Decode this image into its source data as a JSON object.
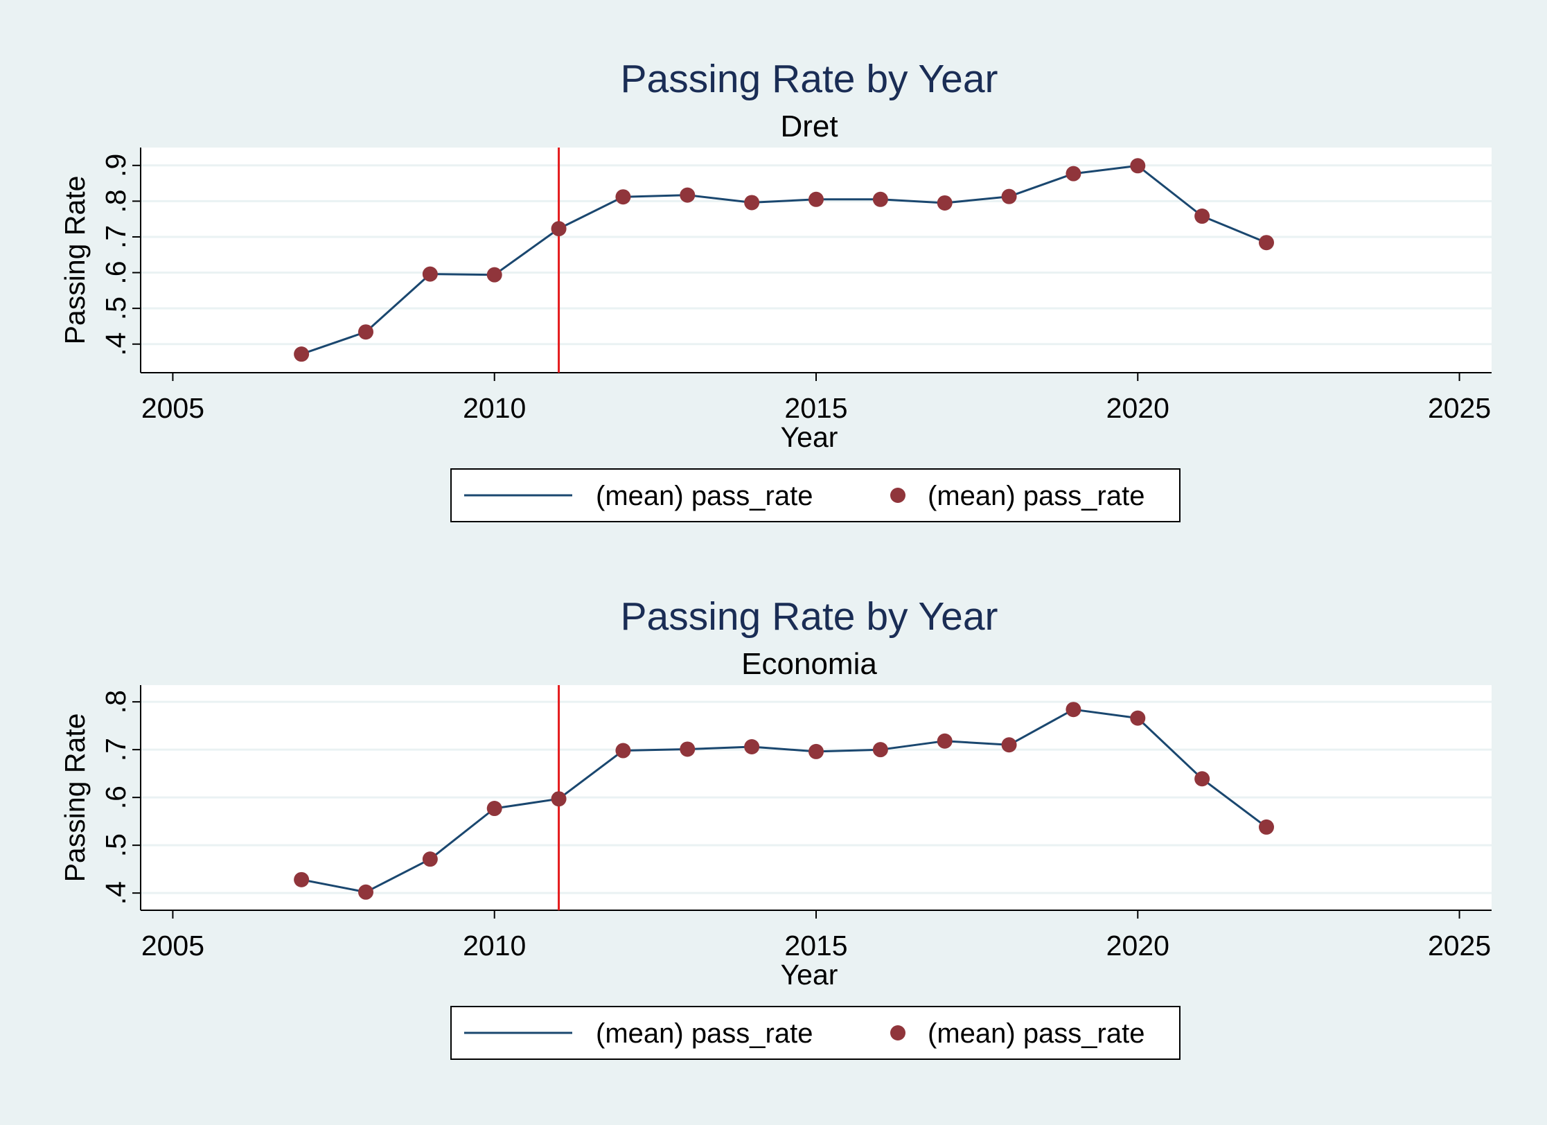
{
  "colors": {
    "background": "#eaf2f3",
    "plot_area": "#ffffff",
    "gridline": "#eaf2f3",
    "line": "#1a476f",
    "marker": "#90353b",
    "reference_line": "#e41a1c",
    "title": "#1a2d55"
  },
  "chart_data": [
    {
      "type": "line",
      "title": "Passing Rate by Year",
      "subtitle": "Dret",
      "xlabel": "Year",
      "ylabel": "Passing Rate",
      "xlim": [
        2004.5,
        2025.5
      ],
      "ylim": [
        0.32,
        0.95
      ],
      "xticks": [
        2005,
        2010,
        2015,
        2020,
        2025
      ],
      "xtick_labels": [
        "2005",
        "2010",
        "2015",
        "2020",
        "2025"
      ],
      "yticks": [
        0.4,
        0.5,
        0.6,
        0.7,
        0.8,
        0.9
      ],
      "ytick_labels": [
        ".4",
        ".5",
        ".6",
        ".7",
        ".8",
        ".9"
      ],
      "grid": true,
      "reference_line_x": 2011,
      "x": [
        2007,
        2008,
        2009,
        2010,
        2011,
        2012,
        2013,
        2014,
        2015,
        2016,
        2017,
        2018,
        2019,
        2020,
        2021,
        2022
      ],
      "series": [
        {
          "name": "(mean) pass_rate",
          "values": [
            0.372,
            0.434,
            0.596,
            0.594,
            0.723,
            0.812,
            0.817,
            0.796,
            0.805,
            0.805,
            0.795,
            0.813,
            0.877,
            0.899,
            0.758,
            0.684
          ]
        }
      ],
      "legend": {
        "position": "bottom",
        "entries": [
          {
            "label": "(mean) pass_rate",
            "symbol": "line"
          },
          {
            "label": "(mean) pass_rate",
            "symbol": "marker"
          }
        ]
      }
    },
    {
      "type": "line",
      "title": "Passing Rate by Year",
      "subtitle": "Economia",
      "xlabel": "Year",
      "ylabel": "Passing Rate",
      "xlim": [
        2004.5,
        2025.5
      ],
      "ylim": [
        0.364,
        0.835
      ],
      "xticks": [
        2005,
        2010,
        2015,
        2020,
        2025
      ],
      "xtick_labels": [
        "2005",
        "2010",
        "2015",
        "2020",
        "2025"
      ],
      "yticks": [
        0.4,
        0.5,
        0.6,
        0.7,
        0.8
      ],
      "ytick_labels": [
        ".4",
        ".5",
        ".6",
        ".7",
        ".8"
      ],
      "grid": true,
      "reference_line_x": 2011,
      "x": [
        2007,
        2008,
        2009,
        2010,
        2011,
        2012,
        2013,
        2014,
        2015,
        2016,
        2017,
        2018,
        2019,
        2020,
        2021,
        2022
      ],
      "series": [
        {
          "name": "(mean) pass_rate",
          "values": [
            0.428,
            0.402,
            0.471,
            0.577,
            0.597,
            0.698,
            0.701,
            0.706,
            0.696,
            0.7,
            0.718,
            0.71,
            0.784,
            0.766,
            0.639,
            0.538
          ]
        }
      ],
      "legend": {
        "position": "bottom",
        "entries": [
          {
            "label": "(mean) pass_rate",
            "symbol": "line"
          },
          {
            "label": "(mean) pass_rate",
            "symbol": "marker"
          }
        ]
      }
    }
  ]
}
